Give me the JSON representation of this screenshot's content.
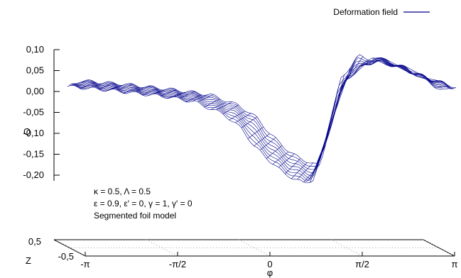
{
  "chart_data": {
    "type": "surface3d",
    "legend": {
      "label": "Deformation field",
      "position": "top-right",
      "color": "#00008b"
    },
    "zlabel": "Q",
    "xlabel": "φ",
    "ylabel": "Z",
    "z_ticks": [
      "0,10",
      "0,05",
      "0,00",
      "-0,05",
      "-0,10",
      "-0,15",
      "-0,20"
    ],
    "z_tick_values": [
      0.1,
      0.05,
      0.0,
      -0.05,
      -0.1,
      -0.15,
      -0.2
    ],
    "zlim": [
      -0.25,
      0.1
    ],
    "x_ticks": [
      "-π",
      "-π/2",
      "0",
      "π/2",
      "π"
    ],
    "x_tick_values": [
      -3.1416,
      -1.5708,
      0,
      1.5708,
      3.1416
    ],
    "y_ticks": [
      "0,5",
      "-0,5"
    ],
    "y_tick_values": [
      0.5,
      -0.5
    ],
    "annotations": [
      "κ = 0.5, Λ = 0.5",
      "ε = 0.9, ε′ = 0, γ = 1, γ′ = 0",
      "Segmented foil model"
    ],
    "series": [
      {
        "color": "#00008b",
        "phi": [
          -3.14,
          -2.5,
          -2.0,
          -1.5,
          -1.0,
          -0.5,
          -0.2,
          0.0,
          0.3,
          0.5,
          0.7,
          0.85,
          1.0,
          1.2,
          1.5,
          2.0,
          2.5,
          3.14
        ],
        "q_front": [
          0.012,
          0.004,
          -0.004,
          -0.012,
          -0.025,
          -0.055,
          -0.09,
          -0.13,
          -0.17,
          -0.195,
          -0.21,
          -0.22,
          -0.21,
          -0.13,
          0.02,
          0.085,
          0.06,
          0.005
        ],
        "q_back": [
          0.015,
          0.008,
          0.0,
          -0.008,
          -0.018,
          -0.045,
          -0.075,
          -0.11,
          -0.15,
          -0.17,
          -0.18,
          -0.19,
          -0.1,
          0.02,
          0.075,
          0.055,
          0.03,
          0.0
        ]
      }
    ],
    "grid": "dotted floor only"
  }
}
